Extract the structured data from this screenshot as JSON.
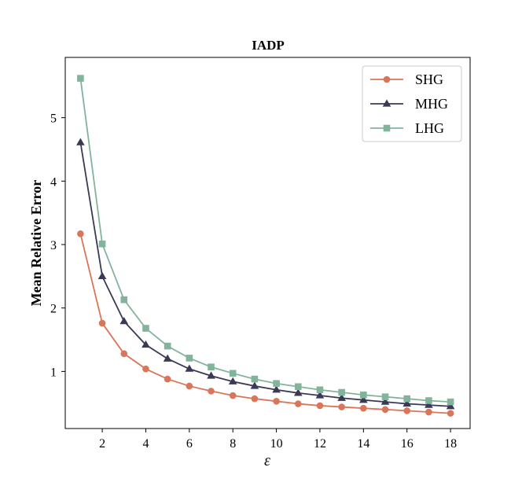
{
  "chart_data": {
    "type": "line",
    "title": "IADP",
    "xlabel": "ε",
    "ylabel": "Mean Relative Error",
    "xlim": [
      0.3,
      18.9
    ],
    "ylim": [
      0.1,
      5.95
    ],
    "xticks": [
      2,
      4,
      6,
      8,
      10,
      12,
      14,
      16,
      18
    ],
    "yticks": [
      1,
      2,
      3,
      4,
      5
    ],
    "legend_position": "top-right",
    "grid": false,
    "x": [
      1,
      2,
      3,
      4,
      5,
      6,
      7,
      8,
      9,
      10,
      11,
      12,
      13,
      14,
      15,
      16,
      17,
      18
    ],
    "series": [
      {
        "name": "SHG",
        "color": "#d97559",
        "marker": "circle",
        "values": [
          3.17,
          1.76,
          1.28,
          1.04,
          0.88,
          0.77,
          0.69,
          0.62,
          0.57,
          0.53,
          0.49,
          0.46,
          0.44,
          0.42,
          0.4,
          0.38,
          0.36,
          0.34
        ]
      },
      {
        "name": "MHG",
        "color": "#3a3a56",
        "marker": "triangle",
        "values": [
          4.61,
          2.5,
          1.79,
          1.42,
          1.2,
          1.04,
          0.93,
          0.84,
          0.77,
          0.71,
          0.66,
          0.62,
          0.58,
          0.55,
          0.52,
          0.49,
          0.47,
          0.45
        ]
      },
      {
        "name": "LHG",
        "color": "#82b39b",
        "marker": "square",
        "values": [
          5.62,
          3.01,
          2.13,
          1.68,
          1.4,
          1.21,
          1.07,
          0.97,
          0.88,
          0.81,
          0.76,
          0.71,
          0.67,
          0.63,
          0.6,
          0.57,
          0.54,
          0.52
        ]
      }
    ]
  }
}
